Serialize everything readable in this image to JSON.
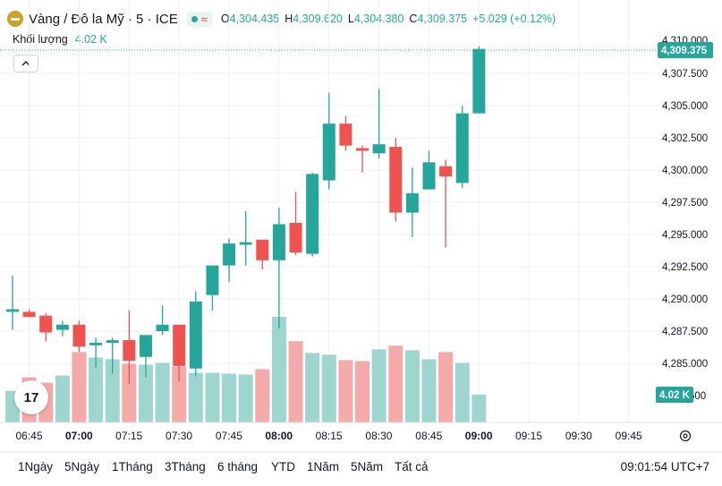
{
  "header": {
    "title": "Vàng / Đô la Mỹ · 5 · ICE",
    "status_icon": "market-open-dot-icon",
    "wave_icon": "≈",
    "o_label": "O",
    "o_value": "4,304.435",
    "h_label": "H",
    "h_value": "4,309.620",
    "l_label": "L",
    "l_value": "4,304.380",
    "c_label": "C",
    "c_value": "4,309.375",
    "change": "+5.029 (+0.12%)"
  },
  "volume_legend": {
    "label": "Khối lượng",
    "value": "4.02 K"
  },
  "collapse_icon": "chevron-up-icon",
  "tv_logo": "17",
  "price_badge": "4,309.375",
  "volume_badge": "4.02 K",
  "price_badge_partial": "4,310.000",
  "volume_axis_partial": "600",
  "bottom": {
    "ranges": [
      "1Ngày",
      "5Ngày",
      "1Tháng",
      "3Tháng",
      "6 tháng",
      "YTD",
      "1Năm",
      "5Năm",
      "Tất cả"
    ],
    "clock": "09:01:54 UTC+7"
  },
  "colors": {
    "up": "#26a69a",
    "down": "#ef5350",
    "up_vol": "#9fd5cf",
    "down_vol": "#f3aaa9",
    "grid": "#eef0f3"
  },
  "chart_data": {
    "type": "candlestick",
    "y_ticks": [
      "4,307.500",
      "4,305.000",
      "4,302.500",
      "4,300.000",
      "4,297.500",
      "4,295.000",
      "4,292.500",
      "4,290.000",
      "4,287.500",
      "4,285.000"
    ],
    "ylim": [
      4282.0,
      4311.0
    ],
    "x_ticks": [
      "06:45",
      "07:00",
      "07:15",
      "07:30",
      "07:45",
      "08:00",
      "08:15",
      "08:30",
      "08:45",
      "09:00",
      "09:15",
      "09:30",
      "09:45"
    ],
    "candles": [
      {
        "o": 4289.0,
        "h": 4291.8,
        "l": 4287.6,
        "c": 4289.2
      },
      {
        "o": 4289.0,
        "h": 4289.2,
        "l": 4288.6,
        "c": 4288.6
      },
      {
        "o": 4288.7,
        "h": 4288.9,
        "l": 4286.7,
        "c": 4287.4
      },
      {
        "o": 4287.6,
        "h": 4288.3,
        "l": 4287.1,
        "c": 4288.0
      },
      {
        "o": 4288.0,
        "h": 4288.3,
        "l": 4285.9,
        "c": 4286.3
      },
      {
        "o": 4286.4,
        "h": 4287.0,
        "l": 4284.7,
        "c": 4286.6
      },
      {
        "o": 4286.6,
        "h": 4287.0,
        "l": 4284.2,
        "c": 4286.8
      },
      {
        "o": 4286.8,
        "h": 4289.1,
        "l": 4283.4,
        "c": 4285.2
      },
      {
        "o": 4285.5,
        "h": 4287.2,
        "l": 4283.9,
        "c": 4287.2
      },
      {
        "o": 4287.5,
        "h": 4289.5,
        "l": 4287.2,
        "c": 4288.0
      },
      {
        "o": 4288.0,
        "h": 4288.0,
        "l": 4283.6,
        "c": 4284.8
      },
      {
        "o": 4284.6,
        "h": 4290.6,
        "l": 4284.0,
        "c": 4289.8
      },
      {
        "o": 4290.3,
        "h": 4292.5,
        "l": 4289.1,
        "c": 4292.6
      },
      {
        "o": 4292.6,
        "h": 4294.7,
        "l": 4291.3,
        "c": 4294.3
      },
      {
        "o": 4294.2,
        "h": 4296.8,
        "l": 4292.6,
        "c": 4294.4
      },
      {
        "o": 4294.6,
        "h": 4294.6,
        "l": 4292.3,
        "c": 4293.0
      },
      {
        "o": 4293.0,
        "h": 4297.1,
        "l": 4287.7,
        "c": 4295.8
      },
      {
        "o": 4295.9,
        "h": 4298.3,
        "l": 4293.4,
        "c": 4293.6
      },
      {
        "o": 4293.5,
        "h": 4299.8,
        "l": 4293.3,
        "c": 4299.7
      },
      {
        "o": 4299.2,
        "h": 4306.0,
        "l": 4298.5,
        "c": 4303.6
      },
      {
        "o": 4303.6,
        "h": 4304.2,
        "l": 4301.5,
        "c": 4301.9
      },
      {
        "o": 4301.7,
        "h": 4301.9,
        "l": 4299.8,
        "c": 4301.5
      },
      {
        "o": 4301.3,
        "h": 4306.3,
        "l": 4300.9,
        "c": 4302.0
      },
      {
        "o": 4301.8,
        "h": 4302.5,
        "l": 4296.0,
        "c": 4296.7
      },
      {
        "o": 4296.7,
        "h": 4300.2,
        "l": 4294.8,
        "c": 4298.2
      },
      {
        "o": 4298.5,
        "h": 4301.5,
        "l": 4298.5,
        "c": 4300.6
      },
      {
        "o": 4300.3,
        "h": 4300.8,
        "l": 4294.0,
        "c": 4299.5
      },
      {
        "o": 4299.0,
        "h": 4305.0,
        "l": 4298.6,
        "c": 4304.4
      },
      {
        "o": 4304.4,
        "h": 4309.6,
        "l": 4304.4,
        "c": 4309.4
      }
    ],
    "volume": [
      35,
      50,
      44,
      52,
      78,
      72,
      70,
      65,
      64,
      66,
      62,
      55,
      55,
      54,
      53,
      59,
      117,
      90,
      77,
      75,
      69,
      68,
      81,
      85,
      80,
      70,
      78,
      66,
      31
    ],
    "volume_max": 150
  }
}
